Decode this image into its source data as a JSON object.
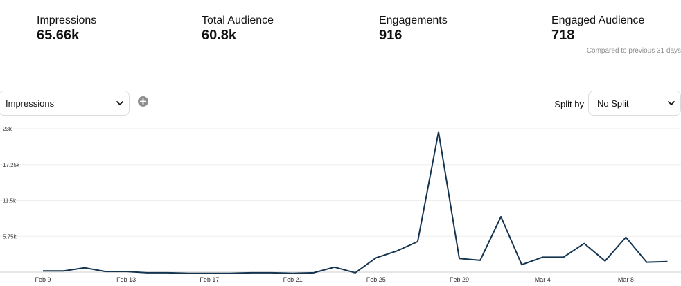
{
  "metrics": [
    {
      "label": "Impressions",
      "value": "65.66k"
    },
    {
      "label": "Total Audience",
      "value": "60.8k"
    },
    {
      "label": "Engagements",
      "value": "916"
    },
    {
      "label": "Engaged Audience",
      "value": "718"
    }
  ],
  "compare_text": "Compared to previous 31 days",
  "metric_select": {
    "value": "Impressions"
  },
  "split": {
    "label": "Split by",
    "value": "No Split"
  },
  "icons": {
    "add": "plus-circle-icon",
    "dropdown": "chevron-down-icon"
  },
  "colors": {
    "line": "#14344f",
    "grid": "#eeeeee"
  },
  "chart_data": {
    "type": "line",
    "series": [
      {
        "values": [
          200,
          200,
          700,
          100,
          100,
          -100,
          -100,
          -200,
          -200,
          -200,
          -100,
          -100,
          -200,
          -100,
          800,
          -100,
          2300,
          3400,
          4900,
          22500,
          2200,
          1900,
          8900,
          1200,
          2400,
          2400,
          4600,
          1800,
          5600,
          1600,
          1700
        ]
      }
    ],
    "x_labels": [
      {
        "index": 0,
        "label": "Feb 9"
      },
      {
        "index": 4,
        "label": "Feb 13"
      },
      {
        "index": 8,
        "label": "Feb 17"
      },
      {
        "index": 12,
        "label": "Feb 21"
      },
      {
        "index": 16,
        "label": "Feb 25"
      },
      {
        "index": 20,
        "label": "Feb 29"
      },
      {
        "index": 24,
        "label": "Mar 4"
      },
      {
        "index": 28,
        "label": "Mar 8"
      }
    ],
    "y_ticks": [
      {
        "value": 5750,
        "label": "5.75k"
      },
      {
        "value": 11500,
        "label": "11.5k"
      },
      {
        "value": 17250,
        "label": "17.25k"
      },
      {
        "value": 23000,
        "label": "23k"
      }
    ],
    "ylim": [
      0,
      23000
    ],
    "grid": true
  }
}
